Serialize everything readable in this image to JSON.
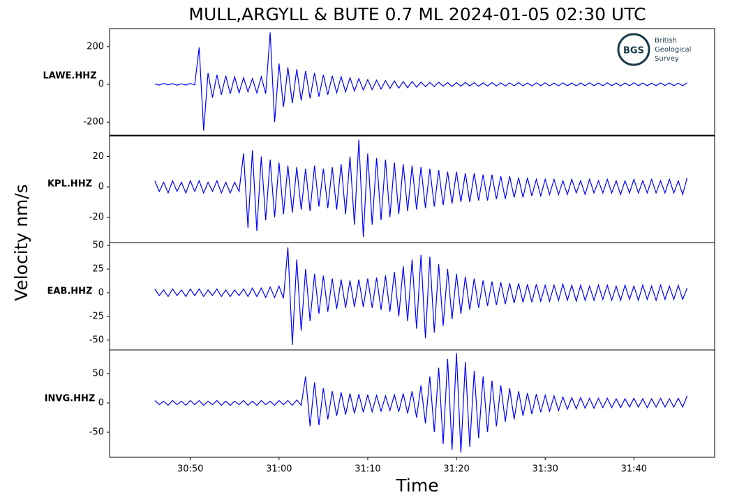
{
  "title": "MULL,ARGYLL & BUTE 0.7 ML   2024-01-05 02:30 UTC",
  "xlabel": "Time",
  "ylabel": "Velocity nm/s",
  "logo": {
    "mark": "BGS",
    "lines": [
      "British",
      "Geological",
      "Survey"
    ]
  },
  "chart_data": [
    {
      "type": "line",
      "name": "LAWE.HHZ",
      "color": "#0000ff",
      "xlim": [
        40.9,
        109.1
      ],
      "ylim": [
        -273,
        295
      ],
      "yticks": [
        -200,
        0,
        200
      ],
      "x": [
        46,
        46.5,
        47,
        47.5,
        48,
        48.5,
        49,
        49.5,
        50,
        50.5,
        51,
        51.5,
        52,
        52.5,
        53,
        53.5,
        54,
        54.5,
        55,
        55.5,
        56,
        56.5,
        57,
        57.5,
        58,
        58.5,
        59,
        59.5,
        60,
        60.5,
        61,
        61.5,
        62,
        62.5,
        63,
        63.5,
        64,
        64.5,
        65,
        65.5,
        66,
        66.5,
        67,
        67.5,
        68,
        68.5,
        69,
        69.5,
        70,
        70.5,
        71,
        71.5,
        72,
        72.5,
        73,
        73.5,
        74,
        74.5,
        75,
        75.5,
        76,
        76.5,
        77,
        77.5,
        78,
        78.5,
        79,
        79.5,
        80,
        80.5,
        81,
        81.5,
        82,
        82.5,
        83,
        83.5,
        84,
        84.5,
        85,
        85.5,
        86,
        86.5,
        87,
        87.5,
        88,
        88.5,
        89,
        89.5,
        90,
        90.5,
        91,
        91.5,
        92,
        92.5,
        93,
        93.5,
        94,
        94.5,
        95,
        95.5,
        96,
        96.5,
        97,
        97.5,
        98,
        98.5,
        99,
        99.5,
        100,
        100.5,
        101,
        101.5,
        102,
        102.5,
        103,
        103.5,
        104,
        104.5,
        105,
        105.5,
        106
      ],
      "values": [
        3,
        -4,
        5,
        -3,
        4,
        -5,
        3,
        -4,
        5,
        -3,
        195,
        -245,
        60,
        -70,
        50,
        -55,
        45,
        -50,
        40,
        -45,
        35,
        -40,
        30,
        -45,
        40,
        -50,
        275,
        -200,
        110,
        -120,
        90,
        -100,
        80,
        -85,
        70,
        -75,
        60,
        -65,
        50,
        -55,
        45,
        -45,
        40,
        -40,
        35,
        -35,
        30,
        -30,
        25,
        -28,
        22,
        -25,
        20,
        -22,
        18,
        -20,
        15,
        -18,
        15,
        -15,
        12,
        -12,
        10,
        -12,
        11,
        -10,
        10,
        -11,
        9,
        -10,
        10,
        -9,
        9,
        -10,
        8,
        -9,
        9,
        -8,
        8,
        -9,
        8,
        -8,
        9,
        -8,
        7,
        -8,
        8,
        -7,
        8,
        -8,
        7,
        -8,
        8,
        -7,
        7,
        -8,
        7,
        -7,
        8,
        -7,
        7,
        -7,
        8,
        -7,
        7,
        -8,
        7,
        -7,
        8,
        -7,
        7,
        -7,
        6,
        -7,
        7,
        -6,
        7,
        -7,
        6,
        -7,
        8
      ]
    },
    {
      "type": "line",
      "name": "KPL.HHZ",
      "color": "#0000ff",
      "xlim": [
        40.9,
        109.1
      ],
      "ylim": [
        -36.7,
        34
      ],
      "yticks": [
        -20,
        0,
        20
      ],
      "x": [
        46,
        46.5,
        47,
        47.5,
        48,
        48.5,
        49,
        49.5,
        50,
        50.5,
        51,
        51.5,
        52,
        52.5,
        53,
        53.5,
        54,
        54.5,
        55,
        55.5,
        56,
        56.5,
        57,
        57.5,
        58,
        58.5,
        59,
        59.5,
        60,
        60.5,
        61,
        61.5,
        62,
        62.5,
        63,
        63.5,
        64,
        64.5,
        65,
        65.5,
        66,
        66.5,
        67,
        67.5,
        68,
        68.5,
        69,
        69.5,
        70,
        70.5,
        71,
        71.5,
        72,
        72.5,
        73,
        73.5,
        74,
        74.5,
        75,
        75.5,
        76,
        76.5,
        77,
        77.5,
        78,
        78.5,
        79,
        79.5,
        80,
        80.5,
        81,
        81.5,
        82,
        82.5,
        83,
        83.5,
        84,
        84.5,
        85,
        85.5,
        86,
        86.5,
        87,
        87.5,
        88,
        88.5,
        89,
        89.5,
        90,
        90.5,
        91,
        91.5,
        92,
        92.5,
        93,
        93.5,
        94,
        94.5,
        95,
        95.5,
        96,
        96.5,
        97,
        97.5,
        98,
        98.5,
        99,
        99.5,
        100,
        100.5,
        101,
        101.5,
        102,
        102.5,
        103,
        103.5,
        104,
        104.5,
        105,
        105.5,
        106
      ],
      "values": [
        4,
        -3,
        3,
        -4,
        4,
        -3,
        3,
        -4,
        4,
        -3,
        4,
        -4,
        3,
        -3,
        4,
        -4,
        3,
        -4,
        3,
        -3,
        22,
        -27,
        24,
        -29,
        20,
        -22,
        18,
        -20,
        16,
        -18,
        14,
        -17,
        13,
        -15,
        12,
        -16,
        14,
        -13,
        12,
        -14,
        13,
        -15,
        15,
        -18,
        20,
        -25,
        31,
        -33,
        22,
        -25,
        19,
        -22,
        18,
        -20,
        16,
        -18,
        15,
        -16,
        14,
        -15,
        13,
        -14,
        12,
        -13,
        11,
        -12,
        10,
        -11,
        10,
        -10,
        9,
        -10,
        9,
        -9,
        8,
        -9,
        8,
        -8,
        7,
        -8,
        7,
        -7,
        6,
        -7,
        6,
        -6,
        5,
        -6,
        5,
        -5,
        5,
        -5,
        4,
        -5,
        5,
        -4,
        4,
        -5,
        5,
        -4,
        4,
        -4,
        5,
        -4,
        4,
        -5,
        4,
        -4,
        5,
        -4,
        4,
        -4,
        5,
        -4,
        4,
        -4,
        5,
        -4,
        4,
        -5,
        6
      ]
    },
    {
      "type": "line",
      "name": "EAB.HHZ",
      "color": "#0000ff",
      "xlim": [
        40.9,
        109.1
      ],
      "ylim": [
        -60.4,
        53
      ],
      "yticks": [
        -50,
        -25,
        0,
        25,
        50
      ],
      "x": [
        46,
        46.5,
        47,
        47.5,
        48,
        48.5,
        49,
        49.5,
        50,
        50.5,
        51,
        51.5,
        52,
        52.5,
        53,
        53.5,
        54,
        54.5,
        55,
        55.5,
        56,
        56.5,
        57,
        57.5,
        58,
        58.5,
        59,
        59.5,
        60,
        60.5,
        61,
        61.5,
        62,
        62.5,
        63,
        63.5,
        64,
        64.5,
        65,
        65.5,
        66,
        66.5,
        67,
        67.5,
        68,
        68.5,
        69,
        69.5,
        70,
        70.5,
        71,
        71.5,
        72,
        72.5,
        73,
        73.5,
        74,
        74.5,
        75,
        75.5,
        76,
        76.5,
        77,
        77.5,
        78,
        78.5,
        79,
        79.5,
        80,
        80.5,
        81,
        81.5,
        82,
        82.5,
        83,
        83.5,
        84,
        84.5,
        85,
        85.5,
        86,
        86.5,
        87,
        87.5,
        88,
        88.5,
        89,
        89.5,
        90,
        90.5,
        91,
        91.5,
        92,
        92.5,
        93,
        93.5,
        94,
        94.5,
        95,
        95.5,
        96,
        96.5,
        97,
        97.5,
        98,
        98.5,
        99,
        99.5,
        100,
        100.5,
        101,
        101.5,
        102,
        102.5,
        103,
        103.5,
        104,
        104.5,
        105,
        105.5,
        106
      ],
      "values": [
        4,
        -3,
        3,
        -4,
        4,
        -3,
        3,
        -4,
        4,
        -3,
        4,
        -4,
        3,
        -3,
        4,
        -4,
        3,
        -4,
        3,
        -3,
        4,
        -4,
        5,
        -4,
        5,
        -5,
        6,
        -5,
        7,
        -6,
        48,
        -55,
        35,
        -40,
        25,
        -30,
        20,
        -22,
        18,
        -20,
        15,
        -17,
        14,
        -16,
        13,
        -15,
        14,
        -15,
        15,
        -16,
        16,
        -18,
        18,
        -20,
        22,
        -25,
        28,
        -30,
        35,
        -38,
        40,
        -48,
        38,
        -42,
        30,
        -35,
        25,
        -28,
        20,
        -22,
        17,
        -18,
        15,
        -16,
        13,
        -14,
        12,
        -13,
        11,
        -12,
        10,
        -11,
        10,
        -10,
        9,
        -10,
        9,
        -9,
        8,
        -9,
        8,
        -8,
        9,
        -8,
        8,
        -9,
        8,
        -8,
        7,
        -8,
        8,
        -7,
        8,
        -8,
        7,
        -8,
        8,
        -7,
        7,
        -8,
        8,
        -7,
        7,
        -8,
        8,
        -7,
        7,
        -7,
        8,
        -7,
        5
      ]
    },
    {
      "type": "line",
      "name": "INVG.HHZ",
      "color": "#0000ff",
      "xlim": [
        40.9,
        109.1
      ],
      "ylim": [
        -92.8,
        90.4
      ],
      "yticks": [
        -50,
        0,
        50
      ],
      "xticks": [
        {
          "value": 50,
          "label": "30:50"
        },
        {
          "value": 60,
          "label": "31:00"
        },
        {
          "value": 70,
          "label": "31:10"
        },
        {
          "value": 80,
          "label": "31:20"
        },
        {
          "value": 90,
          "label": "31:30"
        },
        {
          "value": 100,
          "label": "31:40"
        }
      ],
      "x": [
        46,
        46.5,
        47,
        47.5,
        48,
        48.5,
        49,
        49.5,
        50,
        50.5,
        51,
        51.5,
        52,
        52.5,
        53,
        53.5,
        54,
        54.5,
        55,
        55.5,
        56,
        56.5,
        57,
        57.5,
        58,
        58.5,
        59,
        59.5,
        60,
        60.5,
        61,
        61.5,
        62,
        62.5,
        63,
        63.5,
        64,
        64.5,
        65,
        65.5,
        66,
        66.5,
        67,
        67.5,
        68,
        68.5,
        69,
        69.5,
        70,
        70.5,
        71,
        71.5,
        72,
        72.5,
        73,
        73.5,
        74,
        74.5,
        75,
        75.5,
        76,
        76.5,
        77,
        77.5,
        78,
        78.5,
        79,
        79.5,
        80,
        80.5,
        81,
        81.5,
        82,
        82.5,
        83,
        83.5,
        84,
        84.5,
        85,
        85.5,
        86,
        86.5,
        87,
        87.5,
        88,
        88.5,
        89,
        89.5,
        90,
        90.5,
        91,
        91.5,
        92,
        92.5,
        93,
        93.5,
        94,
        94.5,
        95,
        95.5,
        96,
        96.5,
        97,
        97.5,
        98,
        98.5,
        99,
        99.5,
        100,
        100.5,
        101,
        101.5,
        102,
        102.5,
        103,
        103.5,
        104,
        104.5,
        105,
        105.5,
        106
      ],
      "values": [
        4,
        -3,
        3,
        -4,
        4,
        -3,
        3,
        -4,
        4,
        -3,
        4,
        -4,
        3,
        -3,
        4,
        -4,
        3,
        -4,
        3,
        -3,
        4,
        -4,
        3,
        -4,
        4,
        -3,
        3,
        -4,
        4,
        -3,
        4,
        -4,
        5,
        -4,
        45,
        -40,
        35,
        -38,
        25,
        -28,
        20,
        -22,
        18,
        -20,
        16,
        -18,
        15,
        -16,
        14,
        -15,
        13,
        -14,
        12,
        -13,
        14,
        -15,
        16,
        -18,
        20,
        -25,
        30,
        -35,
        45,
        -50,
        60,
        -70,
        75,
        -80,
        85,
        -85,
        70,
        -75,
        55,
        -60,
        45,
        -50,
        38,
        -40,
        30,
        -32,
        25,
        -28,
        20,
        -22,
        17,
        -19,
        15,
        -16,
        13,
        -14,
        12,
        -13,
        10,
        -11,
        9,
        -10,
        9,
        -9,
        8,
        -9,
        8,
        -8,
        8,
        -8,
        7,
        -8,
        7,
        -7,
        8,
        -7,
        7,
        -8,
        7,
        -7,
        8,
        -7,
        7,
        -7,
        8,
        -7,
        12
      ]
    }
  ]
}
